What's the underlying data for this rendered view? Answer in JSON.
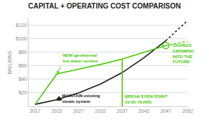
{
  "chart_data": {
    "type": "line",
    "title": "CAPITAL + OPERATING COST COMPARISON",
    "ylabel": "MILLIONS",
    "xlim": [
      2015.5,
      2052
    ],
    "xticks": [
      2017,
      2022,
      2027,
      2032,
      2037,
      2042,
      2047,
      2052
    ],
    "ylim": [
      0,
      130
    ],
    "yticks": [
      {
        "value": 20,
        "label": "$20"
      },
      {
        "value": 40,
        "label": "$40"
      },
      {
        "value": 60,
        "label": "$60"
      },
      {
        "value": 80,
        "label": "$80"
      },
      {
        "value": 100,
        "label": "$100"
      },
      {
        "value": 120,
        "label": "$120"
      }
    ],
    "grid": "y",
    "series": [
      {
        "type": "line",
        "color": "#1a1a1a",
        "line_style": "solid",
        "x": [
          2017,
          2022,
          2027,
          2032,
          2037,
          2042,
          2047
        ],
        "values": [
          3,
          10,
          20,
          33,
          50,
          72,
          97
        ]
      },
      {
        "type": "line",
        "color": "#1a1a1a",
        "line_style": "dotted",
        "x": [
          2047,
          2052
        ],
        "values": [
          97,
          127
        ]
      },
      {
        "type": "line",
        "color": "#44cc00",
        "line_style": "solid",
        "x": [
          2017,
          2022,
          2027,
          2032,
          2037,
          2042,
          2047
        ],
        "values": [
          3,
          48,
          55,
          62,
          70,
          80,
          90
        ]
      },
      {
        "type": "line",
        "color": "#44cc00",
        "line_style": "dotted",
        "x": [
          2047,
          2052
        ],
        "values": [
          90,
          96
        ]
      },
      {
        "type": "line",
        "color": "#44cc00",
        "line_style": "solid",
        "x": [
          2037,
          2037
        ],
        "values": [
          0,
          70
        ]
      },
      {
        "type": "scatter",
        "color": "#44cc00",
        "marker": "circle-open",
        "x": [
          2047
        ],
        "values": [
          90
        ]
      },
      {
        "type": "scatter",
        "color": "#1a1a1a",
        "marker": "triangle-up",
        "x": [
          2022.5
        ],
        "values": [
          11
        ]
      }
    ],
    "annotations": [
      {
        "text": "NEW geothermal\nhot water system",
        "x": 2023,
        "y": 62,
        "color": "#44cc00",
        "anchor": "bottom"
      },
      {
        "text": "MAINTAIN existing\nsteam system",
        "x": 2022.8,
        "y": 2,
        "color": "#1a1a1a",
        "anchor": "bottom"
      },
      {
        "text": "BREAK EVEN POINT\n19-20 YEARS",
        "x": 2037.3,
        "y": 1,
        "color": "#44cc00",
        "anchor": "bottom"
      },
      {
        "text": "SAVINGS\nGROWING\nINTO THE\nFUTURE",
        "x": 2048.2,
        "y": 78,
        "color": "#44cc00",
        "anchor": "middle"
      }
    ],
    "arrows": [
      {
        "x": 2022,
        "y": 48,
        "from_x": 2023,
        "from_y": 60,
        "color": "#44cc00"
      }
    ]
  }
}
